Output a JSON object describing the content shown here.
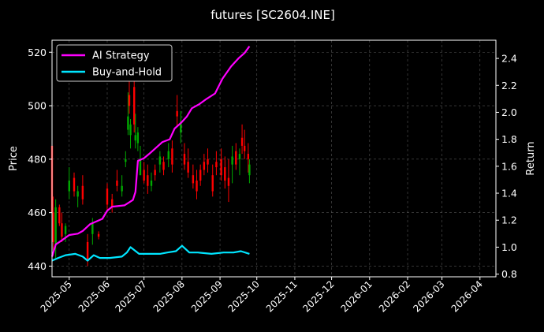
{
  "chart_data": {
    "type": "line",
    "title": "futures [SC2604.INE]",
    "xlabel": "",
    "ylabel_left": "Price",
    "ylabel_right": "Return",
    "x_ticks": [
      "2025-05",
      "2025-06",
      "2025-07",
      "2025-08",
      "2025-09",
      "2025-10",
      "2025-11",
      "2025-12",
      "2026-01",
      "2026-02",
      "2026-03",
      "2026-04"
    ],
    "y_left_ticks": [
      440,
      460,
      480,
      500,
      520
    ],
    "y_right_ticks": [
      "0.8",
      "1.0",
      "1.2",
      "1.4",
      "1.6",
      "1.8",
      "2.0",
      "2.2",
      "2.4"
    ],
    "y_left_range": [
      436,
      524.5
    ],
    "y_right_range": [
      0.78,
      2.535
    ],
    "x_range": [
      "2025-04-17",
      "2026-04-14"
    ],
    "grid": true,
    "legend_position": "upper-left",
    "series": [
      {
        "name": "AI Strategy",
        "color": "#ff00ff",
        "axis": "right",
        "points": [
          [
            "2025-04-17",
            0.93
          ],
          [
            "2025-04-20",
            1.02
          ],
          [
            "2025-04-25",
            1.05
          ],
          [
            "2025-05-01",
            1.09
          ],
          [
            "2025-05-08",
            1.1
          ],
          [
            "2025-05-12",
            1.12
          ],
          [
            "2025-05-18",
            1.17
          ],
          [
            "2025-05-23",
            1.19
          ],
          [
            "2025-05-28",
            1.21
          ],
          [
            "2025-06-01",
            1.27
          ],
          [
            "2025-06-05",
            1.3
          ],
          [
            "2025-06-15",
            1.31
          ],
          [
            "2025-06-22",
            1.35
          ],
          [
            "2025-06-24",
            1.41
          ],
          [
            "2025-06-26",
            1.64
          ],
          [
            "2025-07-01",
            1.66
          ],
          [
            "2025-07-05",
            1.69
          ],
          [
            "2025-07-10",
            1.73
          ],
          [
            "2025-07-16",
            1.78
          ],
          [
            "2025-07-22",
            1.8
          ],
          [
            "2025-07-26",
            1.88
          ],
          [
            "2025-07-31",
            1.92
          ],
          [
            "2025-08-05",
            1.97
          ],
          [
            "2025-08-09",
            2.03
          ],
          [
            "2025-08-15",
            2.06
          ],
          [
            "2025-08-21",
            2.1
          ],
          [
            "2025-08-28",
            2.14
          ],
          [
            "2025-09-03",
            2.25
          ],
          [
            "2025-09-10",
            2.34
          ],
          [
            "2025-09-16",
            2.4
          ],
          [
            "2025-09-21",
            2.44
          ],
          [
            "2025-09-25",
            2.49
          ]
        ]
      },
      {
        "name": "Buy-and-Hold",
        "color": "#00e5ff",
        "axis": "right",
        "points": [
          [
            "2025-04-17",
            0.9
          ],
          [
            "2025-04-22",
            0.92
          ],
          [
            "2025-04-28",
            0.94
          ],
          [
            "2025-05-06",
            0.95
          ],
          [
            "2025-05-12",
            0.93
          ],
          [
            "2025-05-16",
            0.9
          ],
          [
            "2025-05-21",
            0.94
          ],
          [
            "2025-05-26",
            0.92
          ],
          [
            "2025-06-03",
            0.92
          ],
          [
            "2025-06-13",
            0.93
          ],
          [
            "2025-06-17",
            0.96
          ],
          [
            "2025-06-20",
            1.0
          ],
          [
            "2025-06-27",
            0.95
          ],
          [
            "2025-07-08",
            0.95
          ],
          [
            "2025-07-14",
            0.95
          ],
          [
            "2025-07-20",
            0.96
          ],
          [
            "2025-07-27",
            0.97
          ],
          [
            "2025-08-01",
            1.01
          ],
          [
            "2025-08-07",
            0.96
          ],
          [
            "2025-08-14",
            0.96
          ],
          [
            "2025-08-25",
            0.95
          ],
          [
            "2025-09-04",
            0.96
          ],
          [
            "2025-09-12",
            0.96
          ],
          [
            "2025-09-18",
            0.97
          ],
          [
            "2025-09-25",
            0.95
          ]
        ]
      }
    ],
    "candles": {
      "axis": "left",
      "up_color": "#00aa00",
      "down_color": "#ff0000",
      "bars": [
        [
          "2025-04-17",
          485,
          487,
          455,
          460
        ],
        [
          "2025-04-18",
          460,
          466,
          444,
          449
        ],
        [
          "2025-04-20",
          448,
          465,
          443,
          462
        ],
        [
          "2025-04-23",
          462,
          463,
          455,
          456
        ],
        [
          "2025-04-25",
          456,
          460,
          449,
          451
        ],
        [
          "2025-04-28",
          452,
          456,
          449,
          455
        ],
        [
          "2025-05-01",
          468,
          477,
          465,
          472
        ],
        [
          "2025-05-05",
          473,
          475,
          466,
          468
        ],
        [
          "2025-05-08",
          466,
          470,
          462,
          468
        ],
        [
          "2025-05-12",
          470,
          474,
          463,
          465
        ],
        [
          "2025-05-16",
          449,
          452,
          440,
          442
        ],
        [
          "2025-05-20",
          452,
          458,
          448,
          456
        ],
        [
          "2025-05-25",
          452,
          453,
          450,
          451
        ],
        [
          "2025-06-01",
          469,
          471,
          461,
          463
        ],
        [
          "2025-06-05",
          465,
          467,
          460,
          462
        ],
        [
          "2025-06-09",
          472,
          476,
          468,
          470
        ],
        [
          "2025-06-13",
          468,
          474,
          466,
          470
        ],
        [
          "2025-06-16",
          479,
          483,
          477,
          480
        ],
        [
          "2025-06-18",
          491,
          505,
          489,
          496
        ],
        [
          "2025-06-19",
          504,
          515,
          497,
          500
        ],
        [
          "2025-06-20",
          489,
          495,
          484,
          493
        ],
        [
          "2025-06-23",
          507,
          513,
          490,
          493
        ],
        [
          "2025-06-24",
          487,
          497,
          484,
          489
        ],
        [
          "2025-06-26",
          486,
          492,
          483,
          490
        ],
        [
          "2025-06-28",
          474,
          485,
          474,
          480
        ],
        [
          "2025-07-01",
          476,
          479,
          471,
          472
        ],
        [
          "2025-07-04",
          474,
          478,
          467,
          470
        ],
        [
          "2025-07-07",
          470,
          475,
          468,
          472
        ],
        [
          "2025-07-10",
          476,
          478,
          472,
          474
        ],
        [
          "2025-07-14",
          478,
          483,
          475,
          481
        ],
        [
          "2025-07-17",
          479,
          481,
          474,
          476
        ],
        [
          "2025-07-21",
          480,
          486,
          477,
          483
        ],
        [
          "2025-07-24",
          484,
          487,
          475,
          478
        ],
        [
          "2025-07-28",
          498,
          504,
          492,
          496
        ],
        [
          "2025-07-31",
          490,
          498,
          486,
          494
        ],
        [
          "2025-08-03",
          482,
          486,
          476,
          478
        ],
        [
          "2025-08-06",
          479,
          484,
          473,
          475
        ],
        [
          "2025-08-10",
          474,
          478,
          469,
          471
        ],
        [
          "2025-08-13",
          472,
          476,
          465,
          468
        ],
        [
          "2025-08-16",
          476,
          478,
          470,
          472
        ],
        [
          "2025-08-19",
          479,
          482,
          474,
          476
        ],
        [
          "2025-08-22",
          480,
          484,
          475,
          478
        ],
        [
          "2025-08-26",
          474,
          478,
          466,
          468
        ],
        [
          "2025-08-29",
          479,
          483,
          474,
          477
        ],
        [
          "2025-09-02",
          480,
          484,
          472,
          474
        ],
        [
          "2025-09-05",
          477,
          481,
          469,
          472
        ],
        [
          "2025-09-08",
          473,
          480,
          464,
          470
        ],
        [
          "2025-09-11",
          478,
          485,
          471,
          481
        ],
        [
          "2025-09-14",
          483,
          486,
          476,
          478
        ],
        [
          "2025-09-17",
          480,
          484,
          474,
          482
        ],
        [
          "2025-09-19",
          488,
          493,
          482,
          485
        ],
        [
          "2025-09-21",
          485,
          491,
          480,
          483
        ],
        [
          "2025-09-24",
          482,
          486,
          475,
          480
        ],
        [
          "2025-09-25",
          474,
          480,
          471,
          478
        ]
      ]
    },
    "legend": [
      "AI Strategy",
      "Buy-and-Hold"
    ]
  }
}
